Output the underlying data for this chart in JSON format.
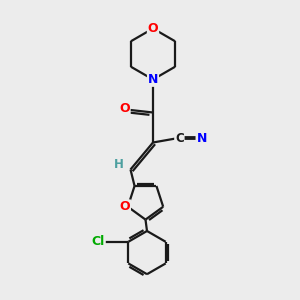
{
  "bg_color": "#ececec",
  "bond_color": "#1a1a1a",
  "atom_colors": {
    "O": "#ff0000",
    "N": "#0000ff",
    "Cl": "#00aa00",
    "C": "#1a1a1a",
    "H": "#4da0a0"
  },
  "figsize": [
    3.0,
    3.0
  ],
  "dpi": 100
}
